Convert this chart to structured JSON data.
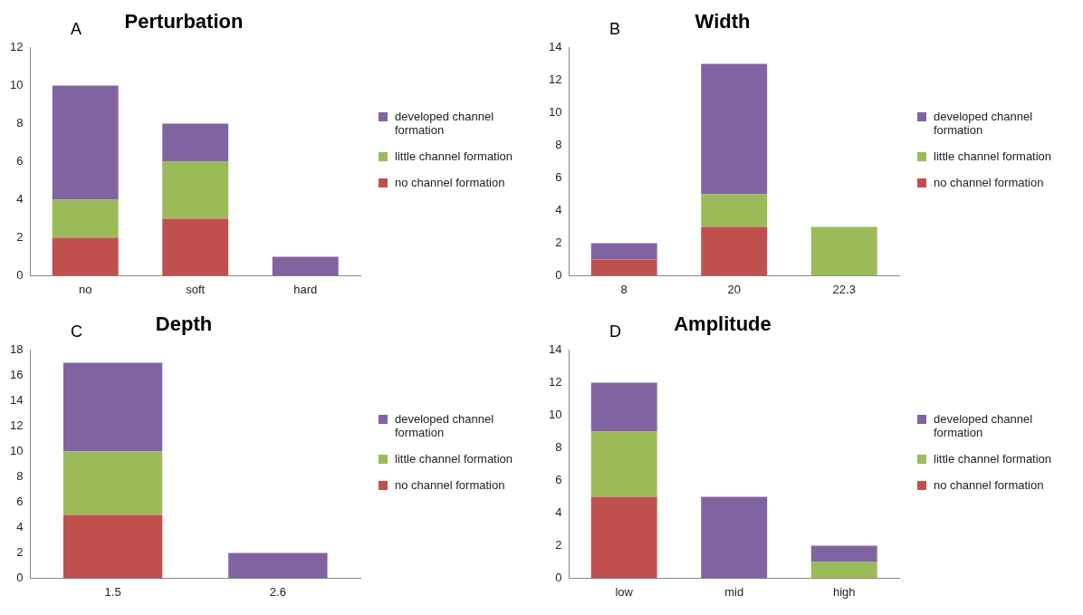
{
  "chart_data": [
    {
      "type": "bar",
      "title": "Perturbation",
      "annotations": [
        "A"
      ],
      "categories": [
        "no",
        "soft",
        "hard"
      ],
      "stacked": true,
      "legend": "right",
      "grid": false,
      "ylim": [
        0,
        12
      ],
      "yticks": [
        0,
        2,
        4,
        6,
        8,
        10,
        12
      ],
      "series": [
        {
          "name": "no channel formation",
          "color": "#c0504d",
          "values": [
            2,
            3,
            0
          ]
        },
        {
          "name": "little channel formation",
          "color": "#9bbb59",
          "values": [
            2,
            3,
            0
          ]
        },
        {
          "name": "developed channel formation",
          "color": "#8064a2",
          "values": [
            6,
            2,
            1
          ]
        }
      ]
    },
    {
      "type": "bar",
      "title": "Width",
      "annotations": [
        "B"
      ],
      "categories": [
        "8",
        "20",
        "22.3"
      ],
      "stacked": true,
      "legend": "right",
      "grid": false,
      "ylim": [
        0,
        14
      ],
      "yticks": [
        0,
        2,
        4,
        6,
        8,
        10,
        12,
        14
      ],
      "series": [
        {
          "name": "no channel formation",
          "color": "#c0504d",
          "values": [
            1,
            3,
            0
          ]
        },
        {
          "name": "little channel formation",
          "color": "#9bbb59",
          "values": [
            0,
            2,
            3
          ]
        },
        {
          "name": "developed channel formation",
          "color": "#8064a2",
          "values": [
            1,
            8,
            0
          ]
        }
      ]
    },
    {
      "type": "bar",
      "title": "Depth",
      "annotations": [
        "C"
      ],
      "categories": [
        "1.5",
        "2.6"
      ],
      "stacked": true,
      "legend": "right",
      "grid": false,
      "ylim": [
        0,
        18
      ],
      "yticks": [
        0,
        2,
        4,
        6,
        8,
        10,
        12,
        14,
        16,
        18
      ],
      "series": [
        {
          "name": "no channel formation",
          "color": "#c0504d",
          "values": [
            5,
            0
          ]
        },
        {
          "name": "little channel formation",
          "color": "#9bbb59",
          "values": [
            5,
            0
          ]
        },
        {
          "name": "developed channel formation",
          "color": "#8064a2",
          "values": [
            7,
            2
          ]
        }
      ]
    },
    {
      "type": "bar",
      "title": "Amplitude",
      "annotations": [
        "D"
      ],
      "categories": [
        "low",
        "mid",
        "high"
      ],
      "stacked": true,
      "legend": "right",
      "grid": false,
      "ylim": [
        0,
        14
      ],
      "yticks": [
        0,
        2,
        4,
        6,
        8,
        10,
        12,
        14
      ],
      "series": [
        {
          "name": "no channel formation",
          "color": "#c0504d",
          "values": [
            5,
            0,
            0
          ]
        },
        {
          "name": "little channel formation",
          "color": "#9bbb59",
          "values": [
            4,
            0,
            1
          ]
        },
        {
          "name": "developed channel formation",
          "color": "#8064a2",
          "values": [
            3,
            5,
            1
          ]
        }
      ]
    }
  ]
}
